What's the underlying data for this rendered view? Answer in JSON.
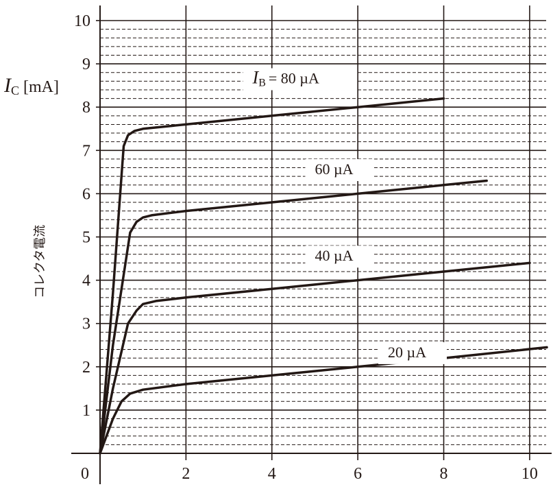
{
  "chart_data": {
    "type": "line",
    "ylabel": {
      "symbol": "I",
      "subscript": "C",
      "unit": "[mA]"
    },
    "ylabel_jp": "コレクタ電流",
    "origin_label": "0",
    "xlim": [
      0,
      10.4
    ],
    "ylim": [
      0,
      10
    ],
    "x_ticks": [
      "2",
      "4",
      "6",
      "8",
      "10"
    ],
    "x_tick_values": [
      2,
      4,
      6,
      8,
      10
    ],
    "y_ticks": [
      "1",
      "2",
      "3",
      "4",
      "5",
      "6",
      "7",
      "8",
      "9",
      "10"
    ],
    "y_tick_values": [
      1,
      2,
      3,
      4,
      5,
      6,
      7,
      8,
      9,
      10
    ],
    "grid": {
      "major": true,
      "minor_dashed_y": true
    },
    "series": [
      {
        "name": "20 µA",
        "label": "20 µA",
        "x": [
          0,
          0.3,
          0.5,
          0.7,
          1.0,
          2.0,
          4.0,
          6.0,
          8.0,
          10.4
        ],
        "y": [
          0,
          0.8,
          1.2,
          1.38,
          1.47,
          1.6,
          1.8,
          2.0,
          2.2,
          2.45
        ]
      },
      {
        "name": "40 µA",
        "label": "40 µA",
        "x": [
          0,
          0.3,
          0.65,
          0.85,
          1.0,
          1.3,
          2.0,
          4.0,
          6.0,
          8.0,
          10.0
        ],
        "y": [
          0,
          1.5,
          3.0,
          3.3,
          3.45,
          3.52,
          3.6,
          3.8,
          4.0,
          4.2,
          4.4
        ]
      },
      {
        "name": "60 µA",
        "label": "60 µA",
        "x": [
          0,
          0.3,
          0.7,
          0.85,
          1.0,
          1.2,
          2.0,
          4.0,
          6.0,
          8.0,
          9.0
        ],
        "y": [
          0,
          2.5,
          5.1,
          5.35,
          5.45,
          5.5,
          5.6,
          5.8,
          6.0,
          6.2,
          6.3
        ]
      },
      {
        "name": "80 µA",
        "label": "80 µA",
        "label_prefix": {
          "symbol": "I",
          "subscript": "B"
        },
        "x": [
          0,
          0.3,
          0.55,
          0.65,
          0.8,
          1.0,
          2.0,
          4.0,
          6.0,
          8.0
        ],
        "y": [
          0,
          3.7,
          7.1,
          7.35,
          7.45,
          7.5,
          7.6,
          7.8,
          8.0,
          8.2
        ]
      }
    ]
  }
}
